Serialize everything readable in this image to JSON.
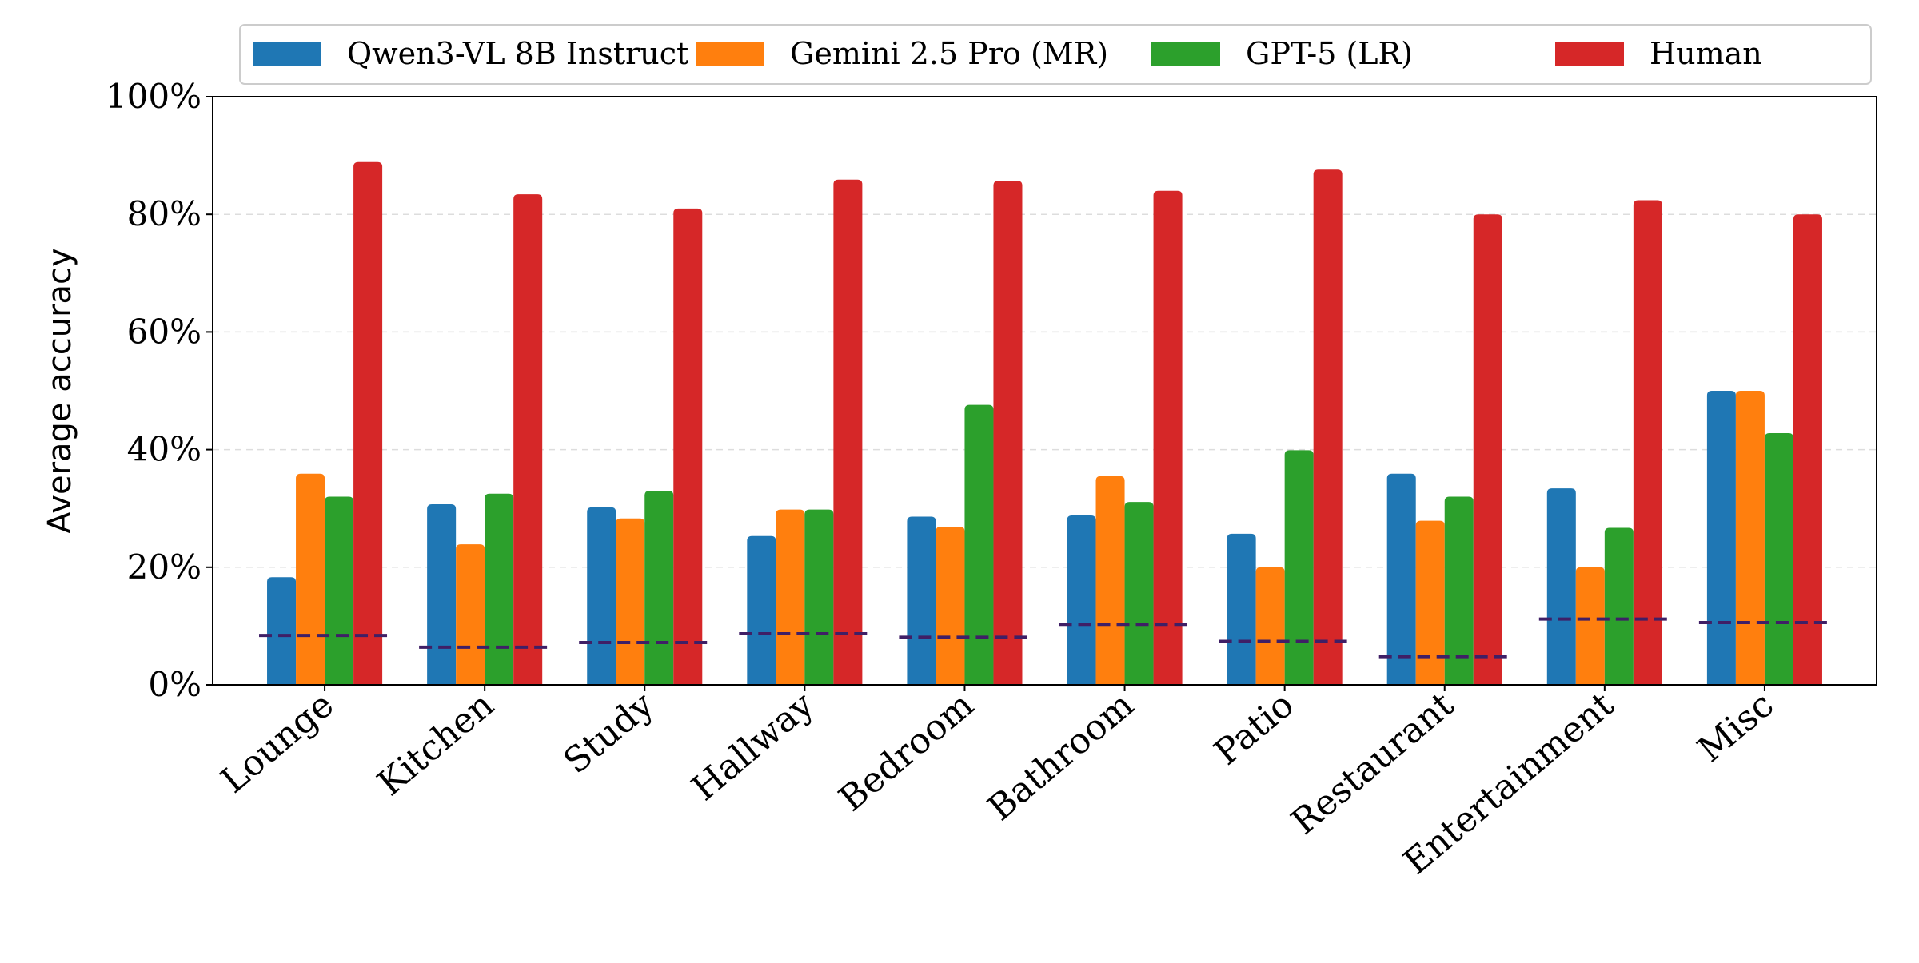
{
  "chart_data": {
    "type": "bar",
    "title": "",
    "xlabel": "",
    "ylabel": "Average accuracy",
    "ylim": [
      0,
      100
    ],
    "yticks": [
      "0%",
      "20%",
      "40%",
      "60%",
      "80%",
      "100%"
    ],
    "ytick_values": [
      0,
      20,
      40,
      60,
      80,
      100
    ],
    "grid": "horizontal dashed",
    "legend_position": "top",
    "categories": [
      "Lounge",
      "Kitchen",
      "Study",
      "Hallway",
      "Bedroom",
      "Bathroom",
      "Patio",
      "Restaurant",
      "Entertainment",
      "Misc"
    ],
    "series": [
      {
        "name": "Qwen3-VL 8B Instruct",
        "color": "#1f77b4",
        "values": [
          18.3,
          30.7,
          30.2,
          25.3,
          28.6,
          28.8,
          25.7,
          35.9,
          33.4,
          50.0
        ]
      },
      {
        "name": "Gemini 2.5 Pro (MR)",
        "color": "#ff7f0e",
        "values": [
          35.9,
          23.9,
          28.3,
          29.8,
          26.9,
          35.5,
          20.0,
          27.9,
          20.0,
          50.0
        ]
      },
      {
        "name": "GPT-5 (LR)",
        "color": "#2ca02c",
        "values": [
          32.0,
          32.5,
          33.0,
          29.8,
          47.6,
          31.1,
          39.9,
          32.0,
          26.7,
          42.8
        ]
      },
      {
        "name": "Human",
        "color": "#d62728",
        "values": [
          88.9,
          83.4,
          81.0,
          85.9,
          85.7,
          84.0,
          87.6,
          80.0,
          82.4,
          80.0
        ]
      }
    ],
    "reference_lines": {
      "style": "dashed",
      "color": "#3f1f66",
      "values": [
        8.4,
        6.4,
        7.2,
        8.7,
        8.1,
        10.3,
        7.4,
        4.8,
        11.2,
        10.6
      ]
    }
  }
}
